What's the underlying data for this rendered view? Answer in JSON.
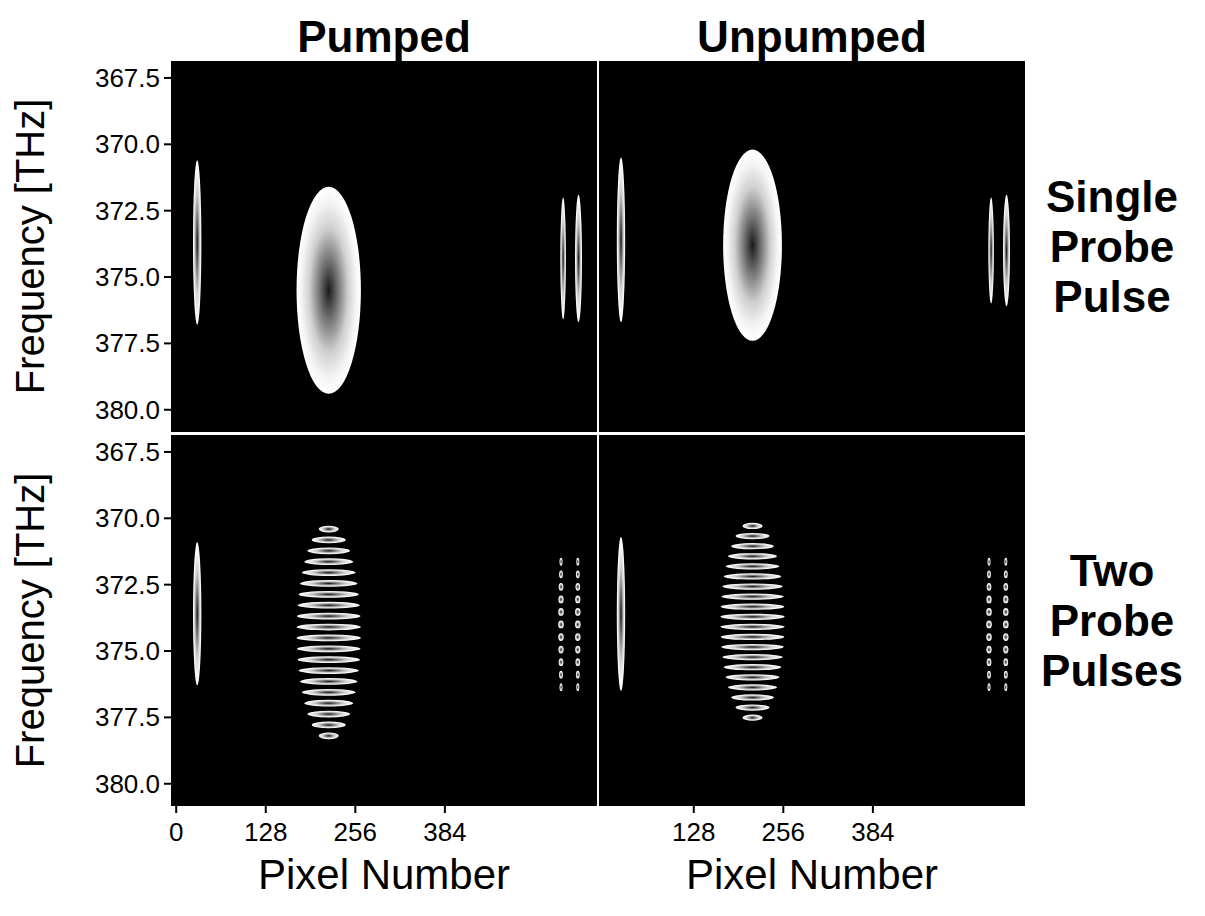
{
  "figure": {
    "column_titles": [
      "Pumped",
      "Unpumped"
    ],
    "row_titles": [
      "Single Probe Pulse",
      "Two Probe Pulses"
    ]
  },
  "chart_data": [
    {
      "type": "heatmap",
      "ylabel": "Frequency [THz]",
      "xlim": [
        -6,
        600
      ],
      "ylim": [
        366.9,
        380.8
      ],
      "yticks": [
        367.5,
        {
          "value": 370,
          "label": "370.0"
        },
        372.5,
        {
          "value": 375,
          "label": "375.0"
        },
        377.5,
        {
          "value": 380,
          "label": "380.0"
        }
      ],
      "tick_labels": "y",
      "spots": [
        {
          "x": 30,
          "y": 373.7,
          "x_halfwidth": 6,
          "y_halfwidth": 3.1,
          "fringes": 0
        },
        {
          "x": 218,
          "y": 375.5,
          "x_halfwidth": 46,
          "y_halfwidth": 3.9,
          "fringes": 0
        },
        {
          "x": 553,
          "y": 374.3,
          "x_halfwidth": 4,
          "y_halfwidth": 2.3,
          "fringes": 0
        },
        {
          "x": 575,
          "y": 374.3,
          "x_halfwidth": 5,
          "y_halfwidth": 2.4,
          "fringes": 0
        }
      ]
    },
    {
      "type": "heatmap",
      "xlim": [
        -6,
        600
      ],
      "ylim": [
        366.9,
        380.8
      ],
      "tick_labels": false,
      "spots": [
        {
          "x": 24,
          "y": 373.6,
          "x_halfwidth": 6,
          "y_halfwidth": 3.1,
          "fringes": 0
        },
        {
          "x": 212,
          "y": 373.8,
          "x_halfwidth": 42,
          "y_halfwidth": 3.6,
          "fringes": 0
        },
        {
          "x": 553,
          "y": 374.0,
          "x_halfwidth": 4,
          "y_halfwidth": 2.0,
          "fringes": 0
        },
        {
          "x": 575,
          "y": 374.0,
          "x_halfwidth": 5,
          "y_halfwidth": 2.1,
          "fringes": 0
        }
      ]
    },
    {
      "type": "heatmap",
      "ylabel": "Frequency [THz]",
      "xlabel": "Pixel Number",
      "xlim": [
        -6,
        600
      ],
      "ylim": [
        366.9,
        380.8
      ],
      "xticks": [
        0,
        128,
        256,
        384
      ],
      "yticks": [
        367.5,
        {
          "value": 370,
          "label": "370.0"
        },
        372.5,
        {
          "value": 375,
          "label": "375.0"
        },
        377.5,
        {
          "value": 380,
          "label": "380.0"
        }
      ],
      "tick_labels": true,
      "spots": [
        {
          "x": 30,
          "y": 373.6,
          "x_halfwidth": 6,
          "y_halfwidth": 2.7,
          "fringes": 0
        },
        {
          "x": 218,
          "y": 374.3,
          "x_halfwidth": 46,
          "y_halfwidth": 4.1,
          "fringes": 20
        },
        {
          "x": 550,
          "y": 374.0,
          "x_halfwidth": 4,
          "y_halfwidth": 2.6,
          "fringes": 11
        },
        {
          "x": 574,
          "y": 374.0,
          "x_halfwidth": 4,
          "y_halfwidth": 2.6,
          "fringes": 11
        }
      ]
    },
    {
      "type": "heatmap",
      "xlabel": "Pixel Number",
      "xlim": [
        -6,
        600
      ],
      "ylim": [
        366.9,
        380.8
      ],
      "xticks": [
        128,
        256,
        384
      ],
      "tick_labels": "x",
      "spots": [
        {
          "x": 24,
          "y": 373.6,
          "x_halfwidth": 6,
          "y_halfwidth": 2.9,
          "fringes": 0
        },
        {
          "x": 212,
          "y": 373.9,
          "x_halfwidth": 46,
          "y_halfwidth": 3.8,
          "fringes": 20
        },
        {
          "x": 550,
          "y": 374.0,
          "x_halfwidth": 4,
          "y_halfwidth": 2.6,
          "fringes": 11
        },
        {
          "x": 574,
          "y": 374.0,
          "x_halfwidth": 4,
          "y_halfwidth": 2.6,
          "fringes": 11
        }
      ]
    }
  ]
}
